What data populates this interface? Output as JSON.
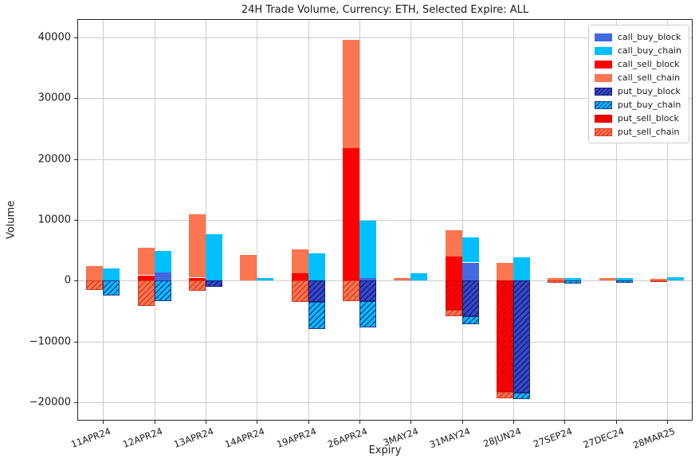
{
  "chart_data": {
    "type": "bar",
    "title": "24H Trade Volume, Currency: ETH, Selected Expire: ALL",
    "xlabel": "Expiry",
    "ylabel": "Volume",
    "ylim": [
      -23000,
      43000
    ],
    "yticks": [
      -20000,
      -10000,
      0,
      10000,
      20000,
      30000,
      40000
    ],
    "grid": true,
    "legend_position": "upper right",
    "categories": [
      "11APR24",
      "12APR24",
      "13APR24",
      "14APR24",
      "19APR24",
      "26APR24",
      "3MAY24",
      "31MAY24",
      "28JUN24",
      "27SEP24",
      "27DEC24",
      "28MAR25"
    ],
    "series": [
      {
        "name": "call_buy_block",
        "color": "#4169E1",
        "hatch": false,
        "hatch_color": "",
        "values": [
          0,
          1300,
          0,
          0,
          0,
          500,
          0,
          3000,
          0,
          0,
          0,
          0
        ]
      },
      {
        "name": "call_buy_chain",
        "color": "#00BFFF",
        "hatch": false,
        "hatch_color": "",
        "values": [
          2000,
          3600,
          7700,
          500,
          4500,
          9400,
          1200,
          4100,
          3800,
          400,
          400,
          600
        ]
      },
      {
        "name": "call_sell_block",
        "color": "#FF0000",
        "hatch": false,
        "hatch_color": "",
        "values": [
          0,
          900,
          500,
          0,
          1200,
          21800,
          0,
          4000,
          0,
          0,
          0,
          0
        ]
      },
      {
        "name": "call_sell_chain",
        "color": "#FB7550",
        "hatch": false,
        "hatch_color": "",
        "values": [
          2400,
          4500,
          10400,
          4200,
          3900,
          17800,
          500,
          4300,
          2900,
          400,
          400,
          300
        ]
      },
      {
        "name": "put_buy_block",
        "color": "#3848C8",
        "hatch": true,
        "hatch_color": "#101E7A",
        "values": [
          0,
          0,
          -1000,
          0,
          -3500,
          -3300,
          0,
          -5900,
          -18400,
          0,
          0,
          0
        ]
      },
      {
        "name": "put_buy_chain",
        "color": "#00BFFF",
        "hatch": true,
        "hatch_color": "#1F3C94",
        "values": [
          -2400,
          -3300,
          0,
          0,
          -4400,
          -4400,
          0,
          -1300,
          -1100,
          -500,
          -400,
          0
        ]
      },
      {
        "name": "put_sell_block",
        "color": "#FF0000",
        "hatch": true,
        "hatch_color": "#D40000",
        "values": [
          0,
          0,
          0,
          0,
          0,
          0,
          0,
          -4800,
          -18300,
          0,
          0,
          0
        ]
      },
      {
        "name": "put_sell_chain",
        "color": "#FB7550",
        "hatch": true,
        "hatch_color": "#D63A20",
        "values": [
          -1500,
          -4200,
          -1600,
          0,
          -3500,
          -3300,
          0,
          -1000,
          -1000,
          -400,
          0,
          -200
        ]
      }
    ],
    "stacks": {
      "sell_positive": [
        "call_sell_block",
        "call_sell_chain"
      ],
      "sell_negative": [
        "put_sell_block",
        "put_sell_chain"
      ],
      "buy_positive": [
        "call_buy_block",
        "call_buy_chain"
      ],
      "buy_negative": [
        "put_buy_block",
        "put_buy_chain"
      ]
    }
  }
}
